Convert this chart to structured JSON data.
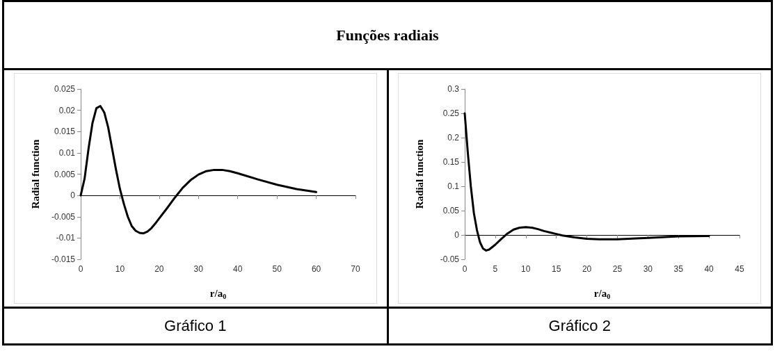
{
  "chart_data": [
    {
      "type": "line",
      "title": "Funções radiais",
      "xlabel": "r/a$_{0}$",
      "ylabel": "Radial function",
      "annotations": [
        "Gráfico 1"
      ],
      "x": [
        0,
        1,
        2,
        3,
        4,
        5,
        6,
        7,
        8,
        9,
        10,
        11,
        12,
        13,
        14,
        15,
        16,
        17,
        18,
        19,
        20,
        22,
        24,
        26,
        28,
        30,
        32,
        34,
        36,
        38,
        40,
        45,
        50,
        55,
        60
      ],
      "series": [
        {
          "color": "#000000",
          "values": [
            0,
            0.004,
            0.011,
            0.017,
            0.0205,
            0.021,
            0.0195,
            0.016,
            0.011,
            0.006,
            0.0015,
            -0.002,
            -0.005,
            -0.0072,
            -0.0083,
            -0.0088,
            -0.0089,
            -0.0085,
            -0.0077,
            -0.0066,
            -0.0054,
            -0.003,
            -0.0005,
            0.0018,
            0.0036,
            0.0049,
            0.0057,
            0.006,
            0.006,
            0.0057,
            0.0052,
            0.0038,
            0.0025,
            0.0015,
            0.0008
          ]
        }
      ],
      "xlim": [
        0,
        70
      ],
      "xticks": [
        0,
        10,
        20,
        30,
        40,
        50,
        60,
        70
      ],
      "ylim": [
        -0.015,
        0.025
      ],
      "yticks": [
        -0.015,
        -0.01,
        -0.005,
        0,
        0.005,
        0.01,
        0.015,
        0.02,
        0.025
      ],
      "marker": "none",
      "line_style": "solid"
    },
    {
      "type": "line",
      "xlabel": "r/a$_{0}$",
      "ylabel": "Radial function",
      "annotations": [
        "Gráfico 2"
      ],
      "x": [
        0,
        0.5,
        1,
        1.5,
        2,
        2.5,
        3,
        3.5,
        4,
        5,
        6,
        7,
        8,
        9,
        10,
        11,
        12,
        13,
        14,
        15,
        16,
        18,
        20,
        22,
        25,
        28,
        30,
        35,
        40
      ],
      "series": [
        {
          "color": "#000000",
          "values": [
            0.25,
            0.17,
            0.1,
            0.045,
            0.01,
            -0.015,
            -0.028,
            -0.032,
            -0.03,
            -0.02,
            -0.008,
            0.003,
            0.011,
            0.015,
            0.016,
            0.015,
            0.012,
            0.008,
            0.005,
            0.002,
            -0.001,
            -0.005,
            -0.008,
            -0.009,
            -0.009,
            -0.007,
            -0.006,
            -0.003,
            -0.002
          ]
        }
      ],
      "xlim": [
        0,
        45
      ],
      "xticks": [
        0,
        5,
        10,
        15,
        20,
        25,
        30,
        35,
        40,
        45
      ],
      "ylim": [
        -0.05,
        0.3
      ],
      "yticks": [
        -0.05,
        0,
        0.05,
        0.1,
        0.15,
        0.2,
        0.25,
        0.3
      ],
      "marker": "none",
      "line_style": "solid"
    }
  ]
}
